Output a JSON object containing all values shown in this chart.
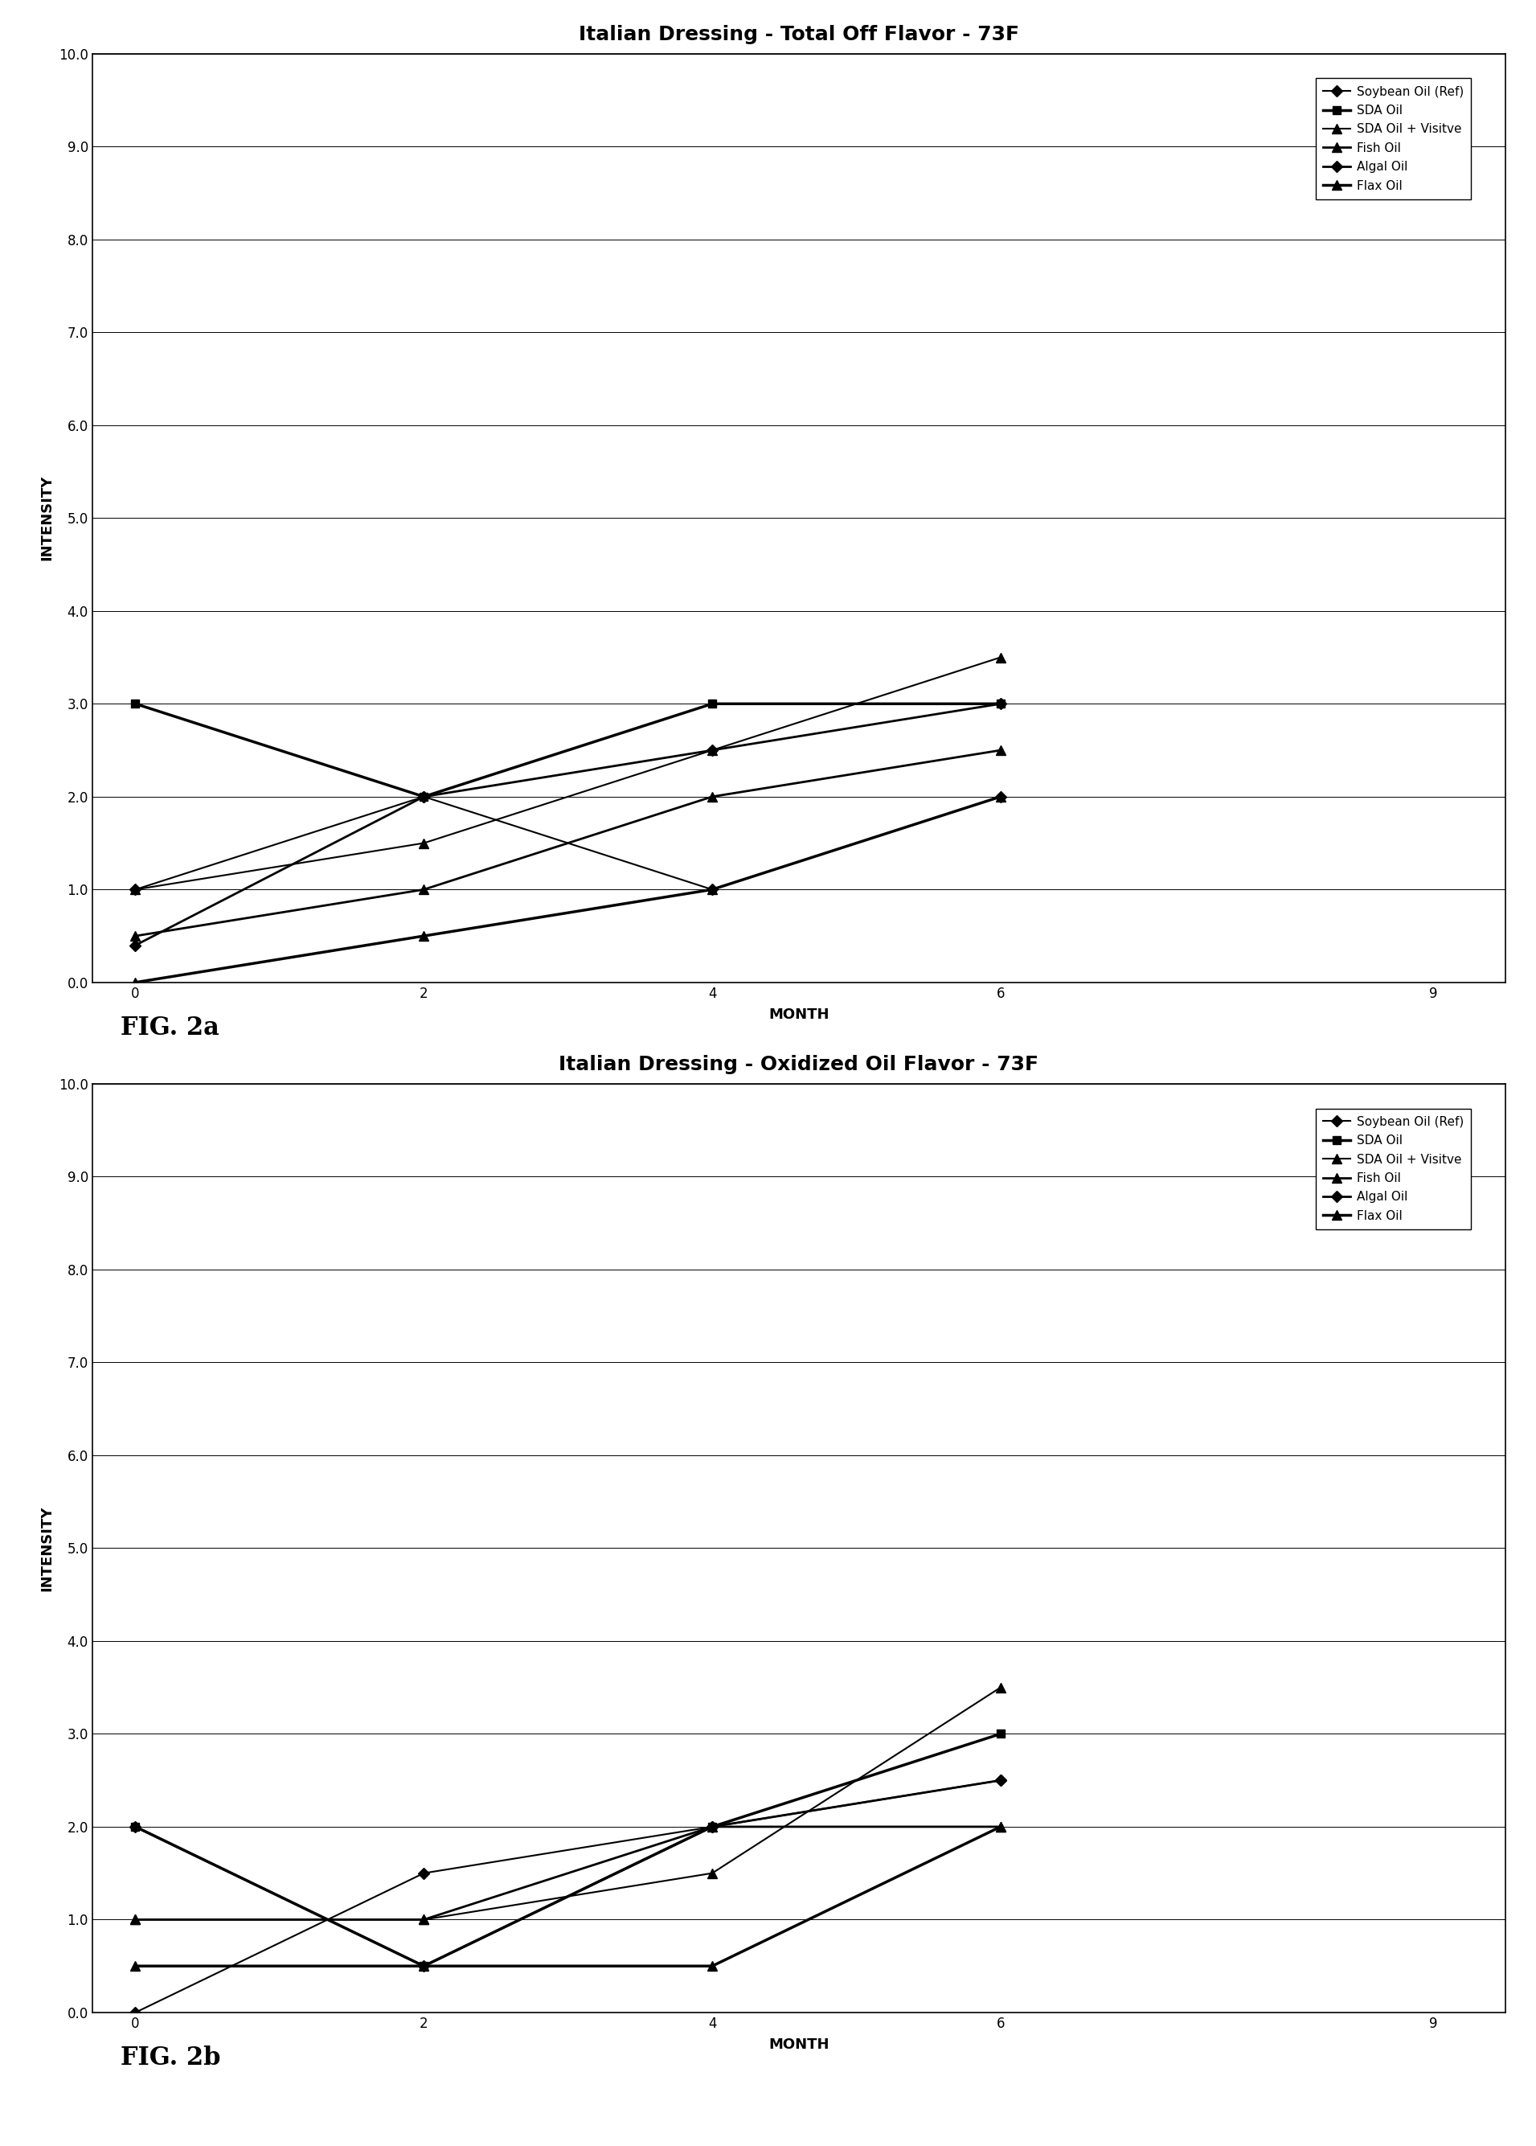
{
  "chart1": {
    "title": "Italian Dressing - Total Off Flavor - 73F",
    "xlabel": "MONTH",
    "ylabel": "INTENSITY",
    "xlim": [
      -0.3,
      9.5
    ],
    "ylim": [
      0.0,
      10.0
    ],
    "xticks": [
      0,
      2,
      4,
      6,
      9
    ],
    "yticks": [
      0.0,
      1.0,
      2.0,
      3.0,
      4.0,
      5.0,
      6.0,
      7.0,
      8.0,
      9.0,
      10.0
    ],
    "series": [
      {
        "label": "Soybean Oil (Ref)",
        "x": [
          0,
          2,
          4,
          6
        ],
        "y": [
          1.0,
          2.0,
          1.0,
          2.0
        ]
      },
      {
        "label": "SDA Oil",
        "x": [
          0,
          2,
          4,
          6
        ],
        "y": [
          3.0,
          2.0,
          3.0,
          3.0
        ]
      },
      {
        "label": "SDA Oil + Visitve",
        "x": [
          0,
          2,
          4,
          6
        ],
        "y": [
          1.0,
          1.5,
          2.5,
          3.5
        ]
      },
      {
        "label": "Fish Oil",
        "x": [
          0,
          2,
          4,
          6
        ],
        "y": [
          0.5,
          1.0,
          2.0,
          2.5
        ]
      },
      {
        "label": "Algal Oil",
        "x": [
          0,
          2,
          4,
          6
        ],
        "y": [
          0.4,
          2.0,
          2.5,
          3.0
        ]
      },
      {
        "label": "Flax Oil",
        "x": [
          0,
          2,
          4,
          6
        ],
        "y": [
          0.0,
          0.5,
          1.0,
          2.0
        ]
      }
    ]
  },
  "chart2": {
    "title": "Italian Dressing - Oxidized Oil Flavor - 73F",
    "xlabel": "MONTH",
    "ylabel": "INTENSITY",
    "xlim": [
      -0.3,
      9.5
    ],
    "ylim": [
      0.0,
      10.0
    ],
    "xticks": [
      0,
      2,
      4,
      6,
      9
    ],
    "yticks": [
      0.0,
      1.0,
      2.0,
      3.0,
      4.0,
      5.0,
      6.0,
      7.0,
      8.0,
      9.0,
      10.0
    ],
    "series": [
      {
        "label": "Soybean Oil (Ref)",
        "x": [
          0,
          2,
          4,
          6
        ],
        "y": [
          0.0,
          1.5,
          2.0,
          2.5
        ]
      },
      {
        "label": "SDA Oil",
        "x": [
          0,
          2,
          4,
          6
        ],
        "y": [
          2.0,
          0.5,
          2.0,
          3.0
        ]
      },
      {
        "label": "SDA Oil + Visitve",
        "x": [
          0,
          2,
          4,
          6
        ],
        "y": [
          1.0,
          1.0,
          1.5,
          3.5
        ]
      },
      {
        "label": "Fish Oil",
        "x": [
          0,
          2,
          4,
          6
        ],
        "y": [
          1.0,
          1.0,
          2.0,
          2.0
        ]
      },
      {
        "label": "Algal Oil",
        "x": [
          0,
          2,
          4,
          6
        ],
        "y": [
          2.0,
          0.5,
          2.0,
          2.5
        ]
      },
      {
        "label": "Flax Oil",
        "x": [
          0,
          2,
          4,
          6
        ],
        "y": [
          0.5,
          0.5,
          0.5,
          2.0
        ]
      }
    ]
  },
  "fig_labels": [
    "FIG. 2a",
    "FIG. 2b"
  ],
  "legend_labels": [
    "Soybean Oil (Ref)",
    "SDA Oil",
    "SDA Oil + Visitve",
    "Fish Oil",
    "Algal Oil",
    "Flax Oil"
  ],
  "markers": [
    "D",
    "s",
    "^",
    "^",
    "D",
    "^"
  ],
  "line_widths": [
    1.5,
    2.5,
    1.5,
    2.0,
    2.0,
    2.5
  ],
  "marker_sizes": [
    7,
    7,
    8,
    8,
    7,
    8
  ],
  "color": "#000000",
  "background_color": "#ffffff",
  "title_fontsize": 18,
  "axis_label_fontsize": 13,
  "tick_fontsize": 12,
  "legend_fontsize": 11
}
